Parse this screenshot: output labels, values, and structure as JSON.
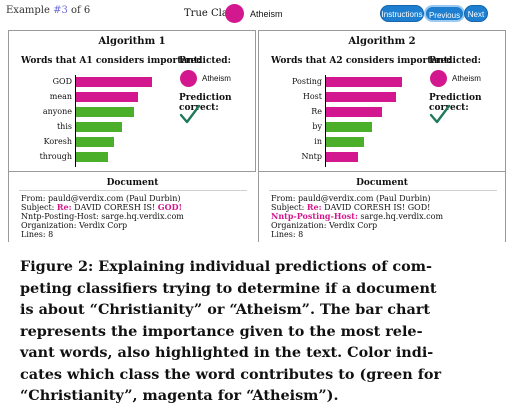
{
  "header": {
    "example_prefix": "Example ",
    "example_current": "#3",
    "example_suffix": " of 6",
    "true_class_label": "True Class:",
    "true_class_value": "Atheism",
    "buttons": {
      "instructions": "Instructions",
      "previous": "Previous",
      "next": "Next"
    }
  },
  "colors": {
    "atheism": "#d3178f",
    "christianity": "#4caf2a",
    "button": "#1e7fd0"
  },
  "panels": [
    {
      "title": "Algorithm 1",
      "words_title": "Words that A1 considers important:",
      "predicted_label": "Predicted:",
      "predicted_value": "Atheism",
      "correct_label": "Prediction correct:",
      "correct_icon": "checkmark-icon",
      "chart_data": {
        "type": "bar",
        "orientation": "horizontal",
        "categories": [
          "GOD",
          "mean",
          "anyone",
          "this",
          "Koresh",
          "through"
        ],
        "values": [
          0.95,
          0.78,
          0.72,
          0.58,
          0.48,
          0.4
        ],
        "colors": [
          "atheism",
          "atheism",
          "christianity",
          "christianity",
          "christianity",
          "christianity"
        ]
      },
      "doc": {
        "title": "Document",
        "line1": "From: pauld@verdix.com (Paul Durbin)",
        "line2_a": "Subject: ",
        "line2_b": "Re:",
        "line2_c": " DAVID CORESH IS! ",
        "line2_d": "GOD!",
        "line3_a": "Nntp-Posting-Host: sarge.hq.verdix.com",
        "line4": "Organization: Verdix Corp",
        "line5": "Lines: 8"
      }
    },
    {
      "title": "Algorithm 2",
      "words_title": "Words that A2 considers important:",
      "predicted_label": "Predicted:",
      "predicted_value": "Atheism",
      "correct_label": "Prediction correct:",
      "correct_icon": "checkmark-icon",
      "chart_data": {
        "type": "bar",
        "orientation": "horizontal",
        "categories": [
          "Posting",
          "Host",
          "Re",
          "by",
          "in",
          "Nntp"
        ],
        "values": [
          0.95,
          0.88,
          0.7,
          0.58,
          0.48,
          0.4
        ],
        "colors": [
          "atheism",
          "atheism",
          "atheism",
          "christianity",
          "christianity",
          "atheism"
        ]
      },
      "doc": {
        "title": "Document",
        "line1": "From: pauld@verdix.com (Paul Durbin)",
        "line2_a": "Subject: ",
        "line2_b": "Re:",
        "line2_c": " DAVID CORESH IS! GOD!",
        "line3_a": "Nntp-Posting-Host:",
        "line3_b": " sarge.hq.verdix.com",
        "line4": "Organization: Verdix Corp",
        "line5": "Lines: 8"
      }
    }
  ],
  "caption": {
    "lines": [
      "Figure 2: Explaining individual predictions of com-",
      "peting classifiers trying to determine if a document",
      "is about “Christianity” or “Atheism”. The bar chart",
      "represents the importance given to the most rele-",
      "vant words, also highlighted in the text. Color indi-",
      "cates which class the word contributes to (green for",
      "“Christianity”, magenta for “Atheism”)."
    ]
  }
}
